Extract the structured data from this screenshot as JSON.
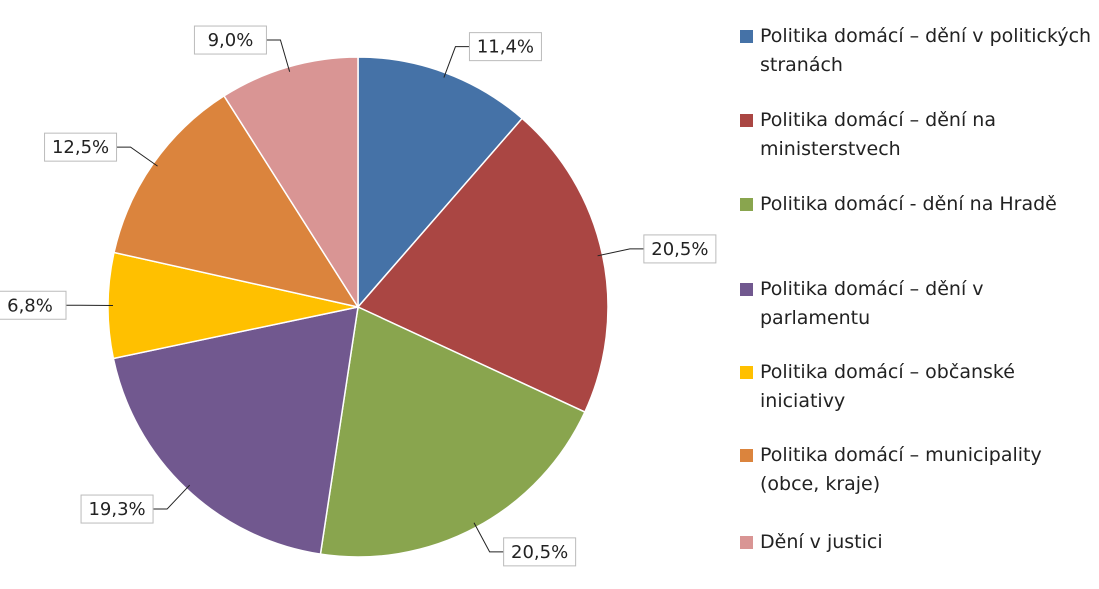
{
  "chart_data": {
    "type": "pie",
    "categories": [
      "Politika domácí – dění v politických stranách",
      "Politika domácí – dění na ministerstvech",
      "Politika domácí - dění na Hradě",
      "Politika domácí – dění v parlamentu",
      "Politika domácí – občanské iniciativy",
      "Politika domácí – municipality (obce, kraje)",
      "Dění v justici"
    ],
    "values": [
      11.4,
      20.5,
      20.5,
      19.3,
      6.8,
      12.5,
      9.0
    ],
    "value_labels": [
      "11,4%",
      "20,5%",
      "20,5%",
      "19,3%",
      "6,8%",
      "12,5%",
      "9,0%"
    ],
    "colors": [
      "#4572a7",
      "#aa4643",
      "#89a54e",
      "#71588f",
      "#ffc000",
      "#db843d",
      "#d99594"
    ],
    "legend": "right"
  }
}
